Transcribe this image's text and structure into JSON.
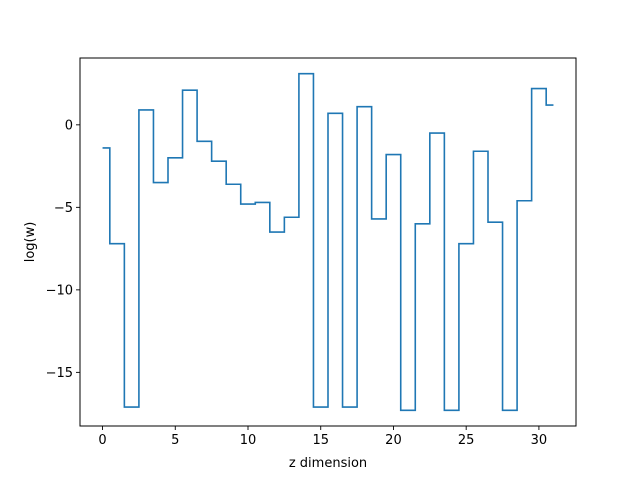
{
  "chart_data": {
    "type": "line",
    "drawstyle": "steps-mid",
    "title": "",
    "xlabel": "z dimension",
    "ylabel": "log(w)",
    "xlim": [
      -1.55,
      32.55
    ],
    "ylim": [
      -18.25,
      4.05
    ],
    "xticks": [
      0,
      5,
      10,
      15,
      20,
      25,
      30
    ],
    "yticks": [
      0,
      -5,
      -10,
      -15
    ],
    "ytick_labels": [
      "0",
      "−5",
      "−10",
      "−15"
    ],
    "grid": false,
    "line_color": "#1f77b4",
    "series": [
      {
        "x": [
          0,
          1,
          2,
          3,
          4,
          5,
          6,
          7,
          8,
          9,
          10,
          11,
          12,
          13,
          14,
          15,
          16,
          17,
          18,
          19,
          20,
          21,
          22,
          23,
          24,
          25,
          26,
          27,
          28,
          29,
          30,
          31
        ],
        "values": [
          -1.4,
          -7.2,
          -17.1,
          0.9,
          -3.5,
          -2.0,
          2.1,
          -1.0,
          -2.2,
          -3.6,
          -4.8,
          -4.7,
          -6.5,
          -5.6,
          3.1,
          -17.1,
          0.7,
          -17.1,
          1.1,
          -5.7,
          -1.8,
          -17.3,
          -6.0,
          -0.5,
          -17.3,
          -7.2,
          -1.6,
          -5.9,
          -17.3,
          -4.6,
          2.2,
          1.2
        ]
      }
    ]
  }
}
